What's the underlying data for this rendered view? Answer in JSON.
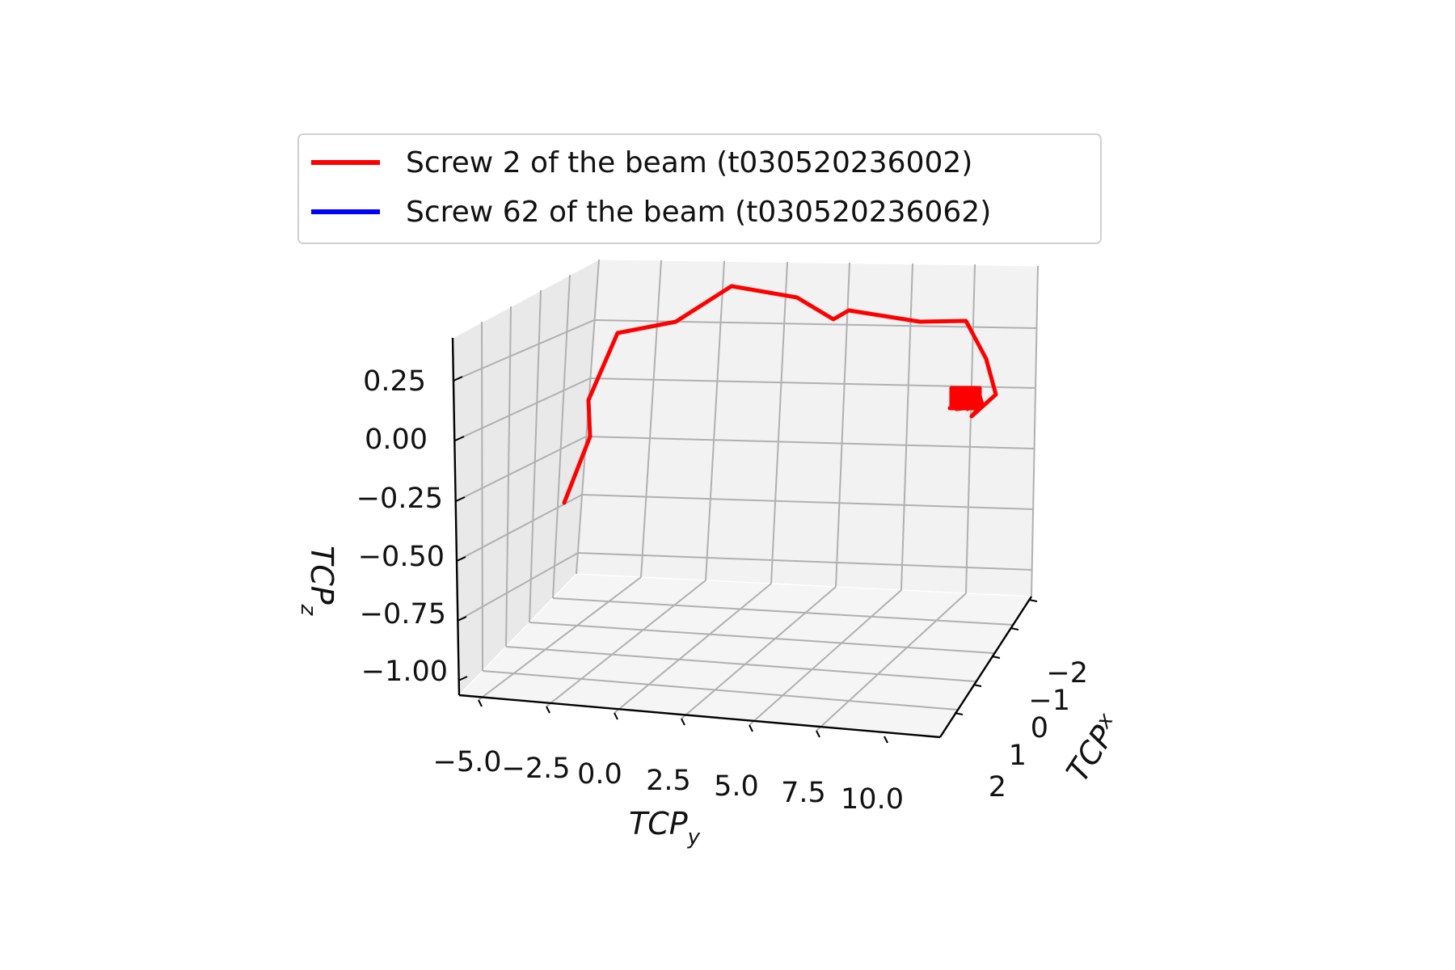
{
  "chart_data": {
    "type": "line3d",
    "xlabel": "TCP",
    "xlabel_sub": "x",
    "ylabel": "TCP",
    "ylabel_sub": "y",
    "zlabel": "TCP",
    "zlabel_sub": "z",
    "x_ticks": [
      "−2",
      "−1",
      "0",
      "1",
      "2"
    ],
    "y_ticks": [
      "−5.0",
      "−2.5",
      "0.0",
      "2.5",
      "5.0",
      "7.5",
      "10.0"
    ],
    "z_ticks": [
      "0.25",
      "0.00",
      "−0.25",
      "−0.50",
      "−0.75",
      "−1.00"
    ],
    "legend_position": "top",
    "series": [
      {
        "name": "Screw 2 of the beam (t030520236002)",
        "color": "#ff0000"
      },
      {
        "name": "Screw 62 of the beam (t030520236062)",
        "color": "#0000ff"
      }
    ]
  }
}
